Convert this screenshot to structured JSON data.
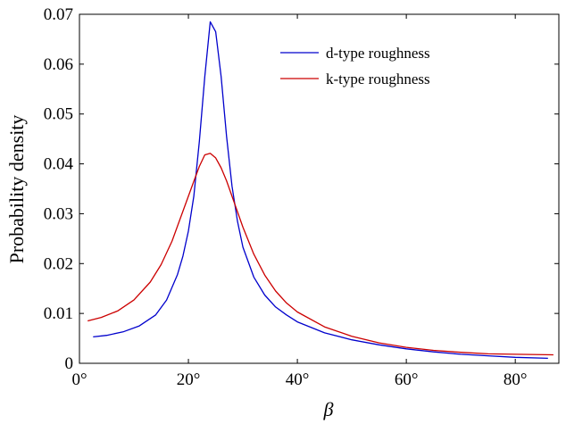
{
  "chart_data": {
    "type": "line",
    "xlabel": "β",
    "ylabel": "Probability density",
    "xlim": [
      0,
      88
    ],
    "ylim": [
      0,
      0.07
    ],
    "xticks": [
      {
        "value": 0,
        "label": "0°"
      },
      {
        "value": 20,
        "label": "20°"
      },
      {
        "value": 40,
        "label": "40°"
      },
      {
        "value": 60,
        "label": "60°"
      },
      {
        "value": 80,
        "label": "80°"
      }
    ],
    "yticks": [
      {
        "value": 0,
        "label": "0"
      },
      {
        "value": 0.01,
        "label": "0.01"
      },
      {
        "value": 0.02,
        "label": "0.02"
      },
      {
        "value": 0.03,
        "label": "0.03"
      },
      {
        "value": 0.04,
        "label": "0.04"
      },
      {
        "value": 0.05,
        "label": "0.05"
      },
      {
        "value": 0.06,
        "label": "0.06"
      },
      {
        "value": 0.07,
        "label": "0.07"
      }
    ],
    "legend_position": "top-right",
    "grid": false,
    "series": [
      {
        "name": "d-type roughness",
        "color": "#0000cc",
        "x": [
          2.5,
          5,
          8,
          11,
          14,
          16,
          18,
          19,
          20,
          21,
          22,
          23,
          24,
          25,
          26,
          27,
          28,
          29,
          30,
          32,
          34,
          36,
          38,
          40,
          45,
          50,
          55,
          60,
          65,
          70,
          75,
          80,
          86
        ],
        "y": [
          0.0053,
          0.0056,
          0.0063,
          0.0075,
          0.0097,
          0.0127,
          0.0178,
          0.0215,
          0.0265,
          0.0335,
          0.0445,
          0.0575,
          0.0685,
          0.0665,
          0.0575,
          0.0455,
          0.0355,
          0.0285,
          0.0233,
          0.0173,
          0.0137,
          0.0113,
          0.0097,
          0.0083,
          0.0061,
          0.0047,
          0.0037,
          0.0029,
          0.0023,
          0.0018,
          0.0015,
          0.0012,
          0.001
        ]
      },
      {
        "name": "k-type roughness",
        "color": "#cc0000",
        "x": [
          1.5,
          4,
          7,
          10,
          13,
          15,
          17,
          19,
          20,
          21,
          22,
          23,
          24,
          25,
          26,
          27,
          28,
          30,
          32,
          34,
          36,
          38,
          40,
          45,
          50,
          55,
          60,
          65,
          70,
          75,
          80,
          87
        ],
        "y": [
          0.0085,
          0.0092,
          0.0105,
          0.0127,
          0.0163,
          0.0198,
          0.0245,
          0.0305,
          0.0335,
          0.0365,
          0.0395,
          0.0418,
          0.0421,
          0.0412,
          0.0392,
          0.0366,
          0.0335,
          0.0273,
          0.0219,
          0.0177,
          0.0145,
          0.0121,
          0.0103,
          0.0073,
          0.0054,
          0.0041,
          0.0032,
          0.0026,
          0.0022,
          0.0019,
          0.0018,
          0.0017
        ]
      }
    ]
  }
}
